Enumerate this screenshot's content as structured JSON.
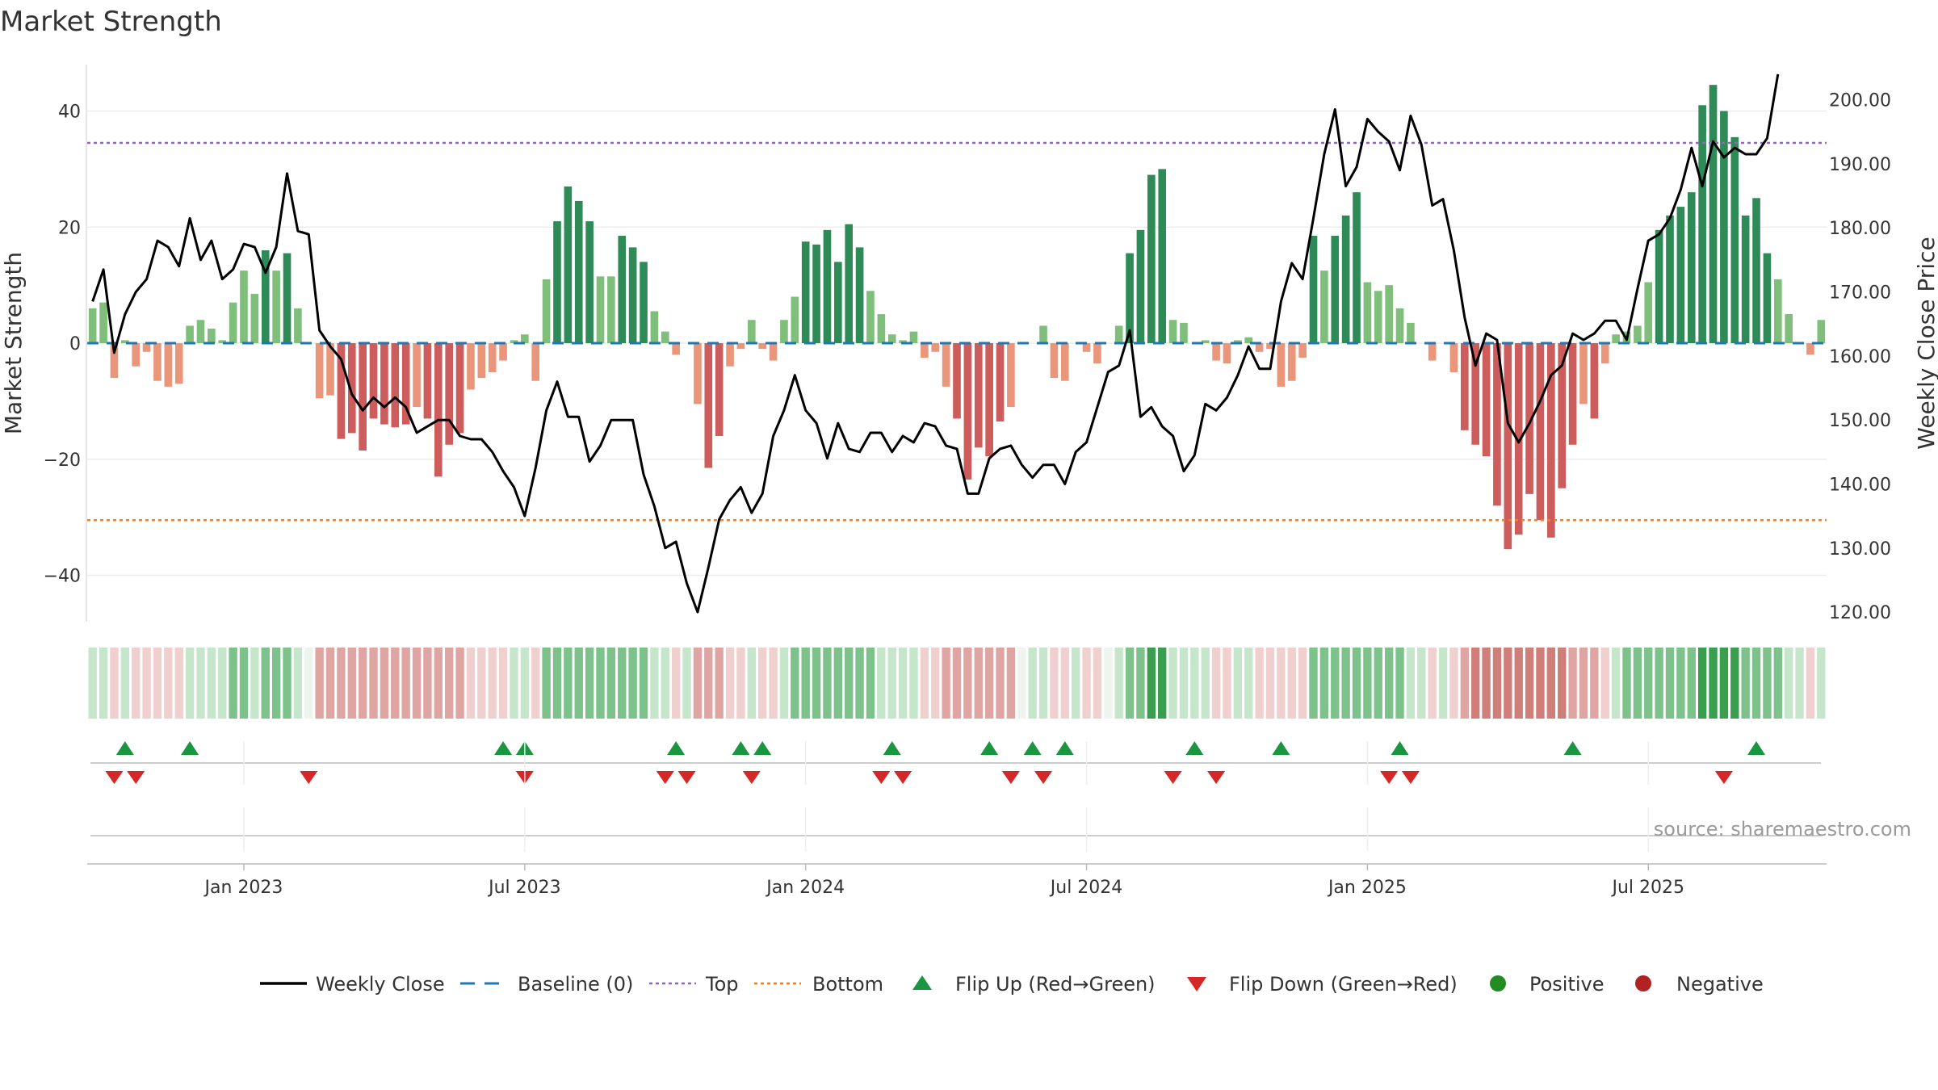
{
  "chart_data": {
    "type": "bar",
    "title": "Market Strength",
    "ylabel_left": "Market Strength",
    "ylabel_right": "Weekly Close Price",
    "ylim_left": [
      -48,
      48
    ],
    "ylim_right": [
      118.5,
      205.5
    ],
    "left_ticks": [
      {
        "v": 40,
        "label": "40"
      },
      {
        "v": 20,
        "label": "20"
      },
      {
        "v": 0,
        "label": "0"
      },
      {
        "v": -20,
        "label": "−20"
      },
      {
        "v": -40,
        "label": "−40"
      }
    ],
    "right_ticks": [
      {
        "v": 200,
        "label": "200.00"
      },
      {
        "v": 190,
        "label": "190.00"
      },
      {
        "v": 180,
        "label": "180.00"
      },
      {
        "v": 170,
        "label": "170.00"
      },
      {
        "v": 160,
        "label": "160.00"
      },
      {
        "v": 150,
        "label": "150.00"
      },
      {
        "v": 140,
        "label": "140.00"
      },
      {
        "v": 130,
        "label": "130.00"
      },
      {
        "v": 120,
        "label": "120.00"
      }
    ],
    "x_ticks": [
      {
        "week": 14.5,
        "label": "Jan 2023"
      },
      {
        "week": 40.5,
        "label": "Jul 2023"
      },
      {
        "week": 66.5,
        "label": "Jan 2024"
      },
      {
        "week": 92.5,
        "label": "Jul 2024"
      },
      {
        "week": 118.5,
        "label": "Jan 2025"
      },
      {
        "week": 144.5,
        "label": "Jul 2025"
      }
    ],
    "top_level": 34.5,
    "bottom_level": -30.5,
    "colors": {
      "pos_strong": "#2e8b57",
      "pos_weak": "#7fbf7b",
      "neg_strong": "#cd5c5c",
      "neg_weak": "#e9967a",
      "line": "#000000",
      "baseline": "#1f77b4",
      "top": "#9467bd",
      "bottom": "#ff7f0e",
      "flip_up": "#1a9641",
      "flip_down": "#d62728",
      "positive": "#228b22",
      "negative": "#b22222"
    },
    "strength": [
      6,
      7,
      -6,
      0.5,
      -4,
      -1.5,
      -6.5,
      -7.5,
      -7,
      3,
      4,
      2.5,
      0.5,
      7,
      12.5,
      8.5,
      16,
      12.5,
      15.5,
      6,
      0,
      -9.5,
      -9,
      -16.5,
      -15.5,
      -18.5,
      -13,
      -14,
      -14.5,
      -14,
      -11,
      -13,
      -23,
      -17.5,
      -15.5,
      -8,
      -6,
      -5,
      -3,
      0.5,
      1.5,
      -6.5,
      11,
      21,
      27,
      24.5,
      21,
      11.5,
      11.5,
      18.5,
      16.5,
      14,
      5.5,
      2,
      -2,
      0,
      -10.5,
      -21.5,
      -16,
      -4,
      -1,
      4,
      -1,
      -3,
      4,
      8,
      17.5,
      17,
      19.5,
      14,
      20.5,
      16.5,
      9,
      5,
      1.5,
      0.5,
      2,
      -2.5,
      -1.5,
      -7.5,
      -13,
      -23.5,
      -18,
      -19.5,
      -13.5,
      -11,
      0,
      0,
      3,
      -6,
      -6.5,
      0,
      -1.5,
      -3.5,
      0,
      3,
      15.5,
      19.5,
      29,
      30,
      4,
      3.5,
      0,
      0.5,
      -3,
      -3.5,
      0.5,
      1,
      -1.5,
      -1,
      -7.5,
      -6.5,
      -2.5,
      18.5,
      12.5,
      18.5,
      22,
      26,
      10.5,
      9,
      10,
      6,
      3.5,
      0,
      -3,
      0,
      -5,
      -15,
      -17.5,
      -19.5,
      -28,
      -35.5,
      -33,
      -26,
      -30.5,
      -33.5,
      -25,
      -17.5,
      -10.5,
      -13,
      -3.5,
      1.5,
      2,
      3,
      10.5,
      19.5,
      22,
      23.5,
      26,
      41,
      44.5,
      40,
      35.5,
      22,
      25,
      15.5,
      11,
      5,
      0,
      -2,
      4
    ],
    "price": [
      168.5,
      173.5,
      160.5,
      166.5,
      170,
      172,
      178,
      177,
      174,
      181.5,
      175,
      178,
      172,
      173.5,
      177.5,
      177,
      173,
      177,
      188.5,
      179.5,
      179,
      164,
      161.5,
      159.5,
      154,
      151.5,
      153.5,
      152,
      153.5,
      152,
      148,
      149,
      150,
      150,
      147.5,
      147,
      147,
      145,
      142,
      139.5,
      135,
      142.5,
      151.5,
      156,
      150.5,
      150.5,
      143.5,
      146,
      150,
      150,
      150,
      141.5,
      136.5,
      130,
      131,
      124.5,
      120,
      127,
      134.5,
      137.5,
      139.5,
      135.5,
      138.5,
      147.5,
      151.5,
      157,
      151.5,
      149.5,
      144,
      149.5,
      145.5,
      145,
      148,
      148,
      145,
      147.5,
      146.5,
      149.5,
      149,
      146,
      145.5,
      138.5,
      138.5,
      144,
      145.5,
      146,
      143,
      141,
      143,
      143,
      140,
      145,
      146.5,
      152,
      157.5,
      158.5,
      164,
      150.5,
      152,
      149,
      147.5,
      142,
      144.5,
      152.5,
      151.5,
      153.5,
      157,
      161.5,
      158,
      158,
      168.5,
      174.5,
      172,
      181.5,
      191.5,
      198.5,
      186.5,
      189.5,
      197,
      195,
      193.5,
      189,
      197.5,
      193,
      183.5,
      184.5,
      176.5,
      166,
      158.5,
      163.5,
      162.5,
      149.5,
      146.5,
      149.5,
      153,
      157,
      158.5,
      163.5,
      162.5,
      163.5,
      165.5,
      165.5,
      162.5,
      170.5,
      178,
      179,
      181.5,
      186,
      192.5,
      186.5,
      193.5,
      191,
      192.5,
      191.5,
      191.5,
      194,
      204
    ],
    "colorband": [
      1,
      1,
      -1,
      1,
      -1,
      -1,
      -1,
      -1,
      -1,
      1,
      1,
      1,
      1,
      2,
      2,
      1,
      2,
      2,
      2,
      1,
      0,
      -2,
      -2,
      -2,
      -2,
      -2,
      -2,
      -2,
      -2,
      -2,
      -2,
      -2,
      -2,
      -2,
      -2,
      -1,
      -1,
      -1,
      -1,
      1,
      1,
      -1,
      2,
      2,
      2,
      2,
      2,
      2,
      2,
      2,
      2,
      2,
      1,
      1,
      -1,
      1,
      -2,
      -2,
      -2,
      -1,
      -1,
      1,
      -1,
      -1,
      1,
      2,
      2,
      2,
      2,
      2,
      2,
      2,
      2,
      1,
      1,
      1,
      1,
      -1,
      -1,
      -2,
      -2,
      -2,
      -2,
      -2,
      -2,
      -2,
      0,
      1,
      1,
      -1,
      -1,
      1,
      -1,
      -1,
      0,
      1,
      2,
      2,
      3,
      3,
      1,
      1,
      1,
      1,
      -1,
      -1,
      1,
      1,
      -1,
      -1,
      -1,
      -1,
      -1,
      2,
      2,
      2,
      2,
      2,
      2,
      2,
      2,
      2,
      1,
      1,
      -1,
      1,
      -1,
      -2,
      -3,
      -3,
      -3,
      -3,
      -3,
      -3,
      -3,
      -3,
      -3,
      -2,
      -2,
      -2,
      -1,
      1,
      2,
      2,
      2,
      2,
      2,
      2,
      2,
      3,
      3,
      3,
      3,
      2,
      2,
      2,
      2,
      1,
      1,
      -1,
      1
    ],
    "flips_up": [
      3,
      9,
      38,
      40,
      54,
      60,
      62,
      74,
      83,
      87,
      90,
      102,
      110,
      121,
      137,
      154
    ],
    "flips_down": [
      2,
      4,
      20,
      40,
      53,
      55,
      61,
      73,
      75,
      85,
      88,
      100,
      104,
      120,
      122,
      151
    ],
    "legend": [
      "Weekly Close",
      "Baseline (0)",
      "Top",
      "Bottom",
      "Flip Up (Red→Green)",
      "Flip Down (Green→Red)",
      "Positive",
      "Negative"
    ],
    "source": "source: sharemaestro.com"
  }
}
